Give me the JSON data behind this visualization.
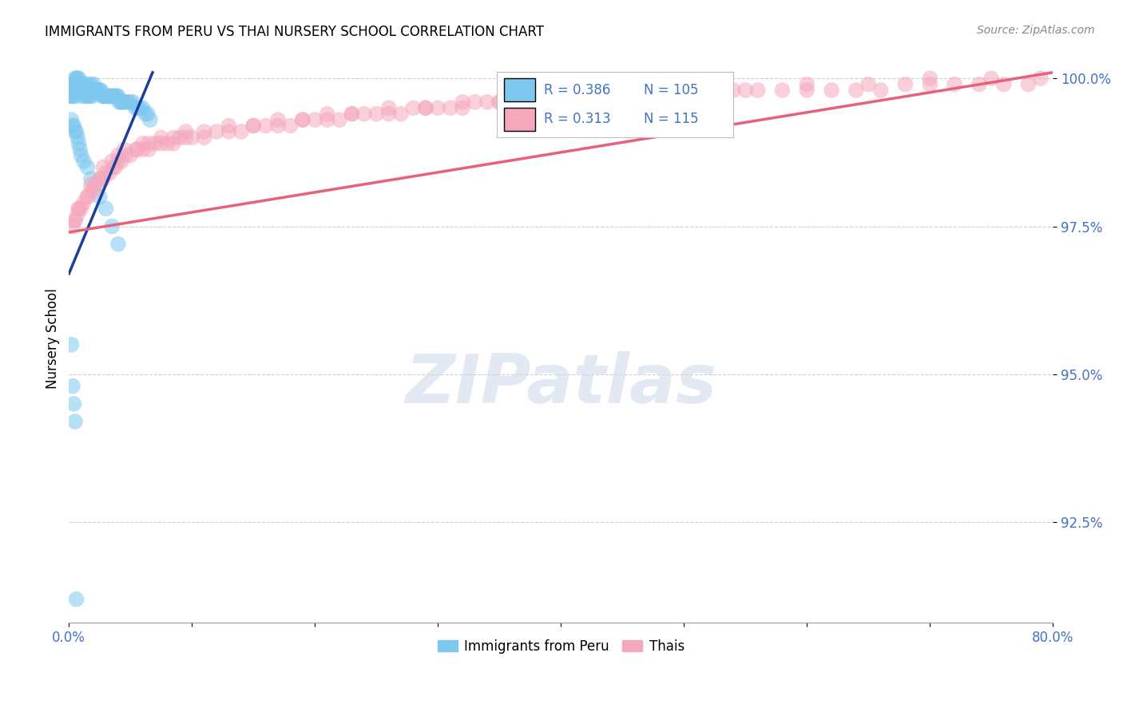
{
  "title": "IMMIGRANTS FROM PERU VS THAI NURSERY SCHOOL CORRELATION CHART",
  "source": "Source: ZipAtlas.com",
  "ylabel": "Nursery School",
  "xlim": [
    0.0,
    0.8
  ],
  "ylim": [
    0.908,
    1.004
  ],
  "yticks": [
    0.925,
    0.95,
    0.975,
    1.0
  ],
  "ytick_labels": [
    "92.5%",
    "95.0%",
    "97.5%",
    "100.0%"
  ],
  "xticks": [
    0.0,
    0.1,
    0.2,
    0.3,
    0.4,
    0.5,
    0.6,
    0.7,
    0.8
  ],
  "blue_R": 0.386,
  "blue_N": 105,
  "pink_R": 0.313,
  "pink_N": 115,
  "blue_color": "#7ec8f0",
  "pink_color": "#f5a8bc",
  "blue_line_color": "#1c3f9e",
  "pink_line_color": "#e8607a",
  "legend_label_blue": "Immigrants from Peru",
  "legend_label_pink": "Thais",
  "watermark": "ZIPatlas",
  "blue_scatter_x": [
    0.001,
    0.001,
    0.001,
    0.002,
    0.002,
    0.002,
    0.003,
    0.003,
    0.003,
    0.004,
    0.004,
    0.005,
    0.005,
    0.005,
    0.005,
    0.006,
    0.006,
    0.006,
    0.007,
    0.007,
    0.007,
    0.008,
    0.008,
    0.008,
    0.009,
    0.009,
    0.01,
    0.01,
    0.01,
    0.011,
    0.011,
    0.012,
    0.012,
    0.013,
    0.013,
    0.014,
    0.014,
    0.015,
    0.015,
    0.016,
    0.016,
    0.017,
    0.017,
    0.018,
    0.018,
    0.019,
    0.019,
    0.02,
    0.021,
    0.022,
    0.023,
    0.024,
    0.025,
    0.026,
    0.027,
    0.028,
    0.029,
    0.03,
    0.031,
    0.032,
    0.033,
    0.034,
    0.035,
    0.036,
    0.037,
    0.038,
    0.039,
    0.04,
    0.041,
    0.042,
    0.043,
    0.044,
    0.046,
    0.048,
    0.05,
    0.052,
    0.054,
    0.056,
    0.058,
    0.06,
    0.062,
    0.064,
    0.066,
    0.002,
    0.003,
    0.004,
    0.005,
    0.006,
    0.007,
    0.008,
    0.009,
    0.01,
    0.012,
    0.015,
    0.018,
    0.021,
    0.025,
    0.03,
    0.035,
    0.04,
    0.002,
    0.003,
    0.004,
    0.005,
    0.006
  ],
  "blue_scatter_y": [
    0.999,
    0.998,
    0.997,
    0.999,
    0.998,
    0.997,
    0.999,
    0.998,
    0.997,
    0.999,
    0.998,
    1.0,
    0.999,
    0.998,
    0.997,
    1.0,
    0.999,
    0.998,
    1.0,
    0.999,
    0.998,
    1.0,
    0.999,
    0.998,
    0.999,
    0.998,
    0.999,
    0.998,
    0.997,
    0.999,
    0.998,
    0.999,
    0.998,
    0.998,
    0.997,
    0.998,
    0.997,
    0.999,
    0.998,
    0.998,
    0.997,
    0.998,
    0.997,
    0.999,
    0.998,
    0.998,
    0.997,
    0.999,
    0.998,
    0.998,
    0.998,
    0.998,
    0.998,
    0.998,
    0.997,
    0.997,
    0.997,
    0.997,
    0.997,
    0.997,
    0.997,
    0.997,
    0.997,
    0.997,
    0.997,
    0.997,
    0.997,
    0.997,
    0.996,
    0.996,
    0.996,
    0.996,
    0.996,
    0.996,
    0.996,
    0.996,
    0.995,
    0.995,
    0.995,
    0.995,
    0.994,
    0.994,
    0.993,
    0.993,
    0.992,
    0.992,
    0.991,
    0.991,
    0.99,
    0.989,
    0.988,
    0.987,
    0.986,
    0.985,
    0.983,
    0.982,
    0.98,
    0.978,
    0.975,
    0.972,
    0.955,
    0.948,
    0.945,
    0.942,
    0.912
  ],
  "pink_scatter_x": [
    0.003,
    0.005,
    0.007,
    0.008,
    0.01,
    0.012,
    0.015,
    0.018,
    0.02,
    0.022,
    0.025,
    0.028,
    0.03,
    0.033,
    0.036,
    0.038,
    0.04,
    0.043,
    0.046,
    0.05,
    0.055,
    0.06,
    0.065,
    0.07,
    0.075,
    0.08,
    0.085,
    0.09,
    0.095,
    0.1,
    0.11,
    0.12,
    0.13,
    0.14,
    0.15,
    0.16,
    0.17,
    0.18,
    0.19,
    0.2,
    0.21,
    0.22,
    0.23,
    0.24,
    0.25,
    0.26,
    0.27,
    0.28,
    0.29,
    0.3,
    0.31,
    0.32,
    0.33,
    0.34,
    0.35,
    0.36,
    0.37,
    0.38,
    0.39,
    0.4,
    0.42,
    0.44,
    0.46,
    0.48,
    0.5,
    0.52,
    0.54,
    0.56,
    0.58,
    0.6,
    0.62,
    0.64,
    0.66,
    0.68,
    0.7,
    0.72,
    0.74,
    0.76,
    0.78,
    0.005,
    0.015,
    0.025,
    0.035,
    0.045,
    0.055,
    0.065,
    0.075,
    0.085,
    0.095,
    0.11,
    0.13,
    0.15,
    0.17,
    0.19,
    0.21,
    0.23,
    0.26,
    0.29,
    0.32,
    0.35,
    0.38,
    0.41,
    0.45,
    0.5,
    0.55,
    0.6,
    0.65,
    0.7,
    0.75,
    0.79,
    0.008,
    0.018,
    0.028,
    0.04,
    0.06
  ],
  "pink_scatter_y": [
    0.975,
    0.976,
    0.977,
    0.978,
    0.978,
    0.979,
    0.98,
    0.981,
    0.981,
    0.982,
    0.983,
    0.983,
    0.984,
    0.984,
    0.985,
    0.985,
    0.986,
    0.986,
    0.987,
    0.987,
    0.988,
    0.988,
    0.988,
    0.989,
    0.989,
    0.989,
    0.989,
    0.99,
    0.99,
    0.99,
    0.99,
    0.991,
    0.991,
    0.991,
    0.992,
    0.992,
    0.992,
    0.992,
    0.993,
    0.993,
    0.993,
    0.993,
    0.994,
    0.994,
    0.994,
    0.994,
    0.994,
    0.995,
    0.995,
    0.995,
    0.995,
    0.995,
    0.996,
    0.996,
    0.996,
    0.996,
    0.996,
    0.997,
    0.997,
    0.997,
    0.997,
    0.997,
    0.997,
    0.997,
    0.997,
    0.998,
    0.998,
    0.998,
    0.998,
    0.998,
    0.998,
    0.998,
    0.998,
    0.999,
    0.999,
    0.999,
    0.999,
    0.999,
    0.999,
    0.976,
    0.98,
    0.983,
    0.986,
    0.988,
    0.988,
    0.989,
    0.99,
    0.99,
    0.991,
    0.991,
    0.992,
    0.992,
    0.993,
    0.993,
    0.994,
    0.994,
    0.995,
    0.995,
    0.996,
    0.996,
    0.997,
    0.997,
    0.997,
    0.998,
    0.998,
    0.999,
    0.999,
    1.0,
    1.0,
    1.0,
    0.978,
    0.982,
    0.985,
    0.987,
    0.989
  ]
}
